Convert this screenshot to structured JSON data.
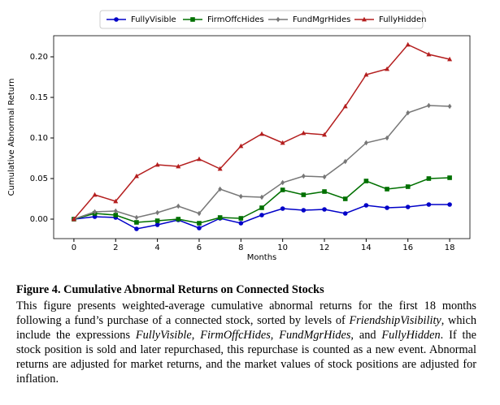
{
  "chart_data": {
    "type": "line",
    "xlabel": "Months",
    "ylabel": "Cumulative Abnormal Return",
    "x": [
      0,
      1,
      2,
      3,
      4,
      5,
      6,
      7,
      8,
      9,
      10,
      11,
      12,
      13,
      14,
      15,
      16,
      17,
      18
    ],
    "series": [
      {
        "name": "FullyVisible",
        "color": "#0000c8",
        "marker": "circle",
        "values": [
          0,
          0.003,
          0.002,
          -0.012,
          -0.007,
          -0.001,
          -0.011,
          0.001,
          -0.005,
          0.005,
          0.013,
          0.011,
          0.012,
          0.007,
          0.017,
          0.014,
          0.015,
          0.018,
          0.018
        ]
      },
      {
        "name": "FirmOffcHides",
        "color": "#007000",
        "marker": "square",
        "values": [
          0,
          0.007,
          0.005,
          -0.004,
          -0.002,
          0,
          -0.005,
          0.002,
          0.001,
          0.014,
          0.036,
          0.03,
          0.034,
          0.025,
          0.047,
          0.037,
          0.04,
          0.05,
          0.051
        ]
      },
      {
        "name": "FundMgrHides",
        "color": "#777777",
        "marker": "diamond",
        "values": [
          0,
          0.009,
          0.01,
          0.002,
          0.008,
          0.016,
          0.007,
          0.037,
          0.028,
          0.027,
          0.045,
          0.053,
          0.052,
          0.071,
          0.094,
          0.1,
          0.131,
          0.14,
          0.139
        ]
      },
      {
        "name": "FullyHidden",
        "color": "#b41e1e",
        "marker": "triangle",
        "values": [
          0,
          0.03,
          0.022,
          0.053,
          0.067,
          0.065,
          0.074,
          0.062,
          0.09,
          0.105,
          0.094,
          0.106,
          0.104,
          0.139,
          0.178,
          0.185,
          0.215,
          0.203,
          0.197
        ]
      }
    ],
    "xlim": [
      -0.97,
      18.97
    ],
    "ylim": [
      -0.024,
      0.226
    ],
    "xticks": [
      0,
      2,
      4,
      6,
      8,
      10,
      12,
      14,
      16,
      18
    ],
    "yticks": [
      {
        "value": 0,
        "label": "0.00"
      },
      {
        "value": 0.05,
        "label": "0.05"
      },
      {
        "value": 0.1,
        "label": "0.10"
      },
      {
        "value": 0.15,
        "label": "0.15"
      },
      {
        "value": 0.2,
        "label": "0.20"
      }
    ],
    "legend": "top"
  },
  "caption": {
    "label": "Figure 4.",
    "title": "Cumulative Abnormal Returns on Connected Stocks",
    "text": [
      "This figure presents weighted-average cumulative abnormal returns for the first 18 months following a fund’s purchase of a connected stock, sorted by levels of ",
      "FriendshipVisibility",
      ", which include the expressions ",
      "FullyVisible",
      ", ",
      "FirmOffcHides",
      ", ",
      "FundMgrHides",
      ", and ",
      "FullyHidden",
      ". If the stock position is sold and later repurchased, this repurchase is counted as a new event. Abnormal returns are adjusted for market returns, and the market values of stock positions are adjusted for inflation."
    ]
  }
}
